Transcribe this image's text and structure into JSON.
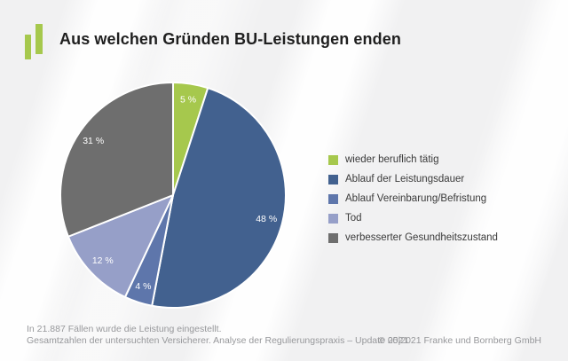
{
  "header": {
    "title": "Aus welchen Gründen BU-Leistungen enden"
  },
  "logo": {
    "name": "franke-bornberg-logo",
    "color": "#a6c84d"
  },
  "chart_data": {
    "type": "pie",
    "title": "Aus welchen Gründen BU-Leistungen enden",
    "start_angle_deg": 0,
    "direction": "clockwise",
    "legend_position": "right",
    "label_color": "#ffffff",
    "slices": [
      {
        "label": "wieder beruflich tätig",
        "value": 5,
        "display": "5 %",
        "color": "#a6c84d"
      },
      {
        "label": "Ablauf der Leistungsdauer",
        "value": 48,
        "display": "48 %",
        "color": "#42618f"
      },
      {
        "label": "Ablauf Vereinbarung/Befristung",
        "value": 4,
        "display": "4 %",
        "color": "#5e76ab"
      },
      {
        "label": "Tod",
        "value": 12,
        "display": "12 %",
        "color": "#969fc8"
      },
      {
        "label": "verbesserter Gesundheitszustand",
        "value": 31,
        "display": "31 %",
        "color": "#6e6e6e"
      }
    ]
  },
  "footer": {
    "line1": "In 21.887 Fällen wurde die Leistung eingestellt.",
    "line2": "Gesamtzahlen der untersuchten Versicherer. Analyse der Regulierungspraxis – Update 2021",
    "copyright": "© 05|2021 Franke und Bornberg GmbH"
  }
}
